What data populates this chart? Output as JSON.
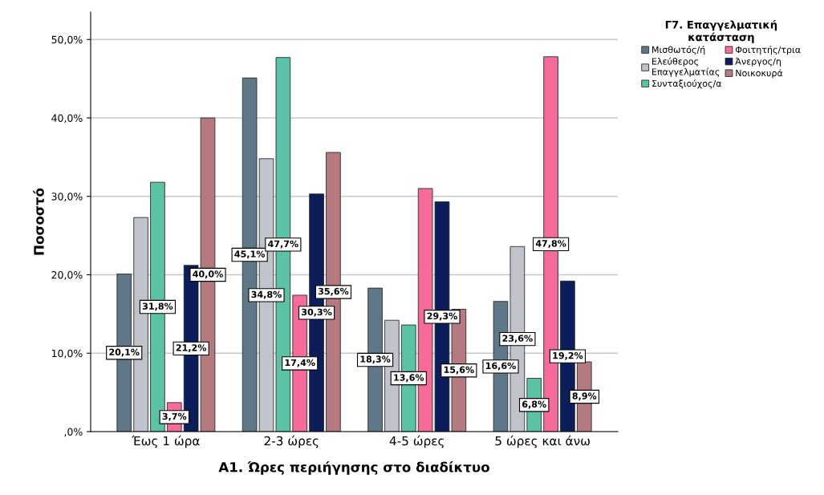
{
  "chart_data": {
    "type": "bar",
    "xlabel": "Α1. Ώρες περιήγησης στο διαδίκτυο",
    "ylabel": "Ποσοστό",
    "legend_title": "Γ7. Επαγγελματική\nκατάσταση",
    "categories": [
      "Έως 1 ώρα",
      "2-3 ώρες",
      "4-5 ώρες",
      "5 ώρες και άνω"
    ],
    "series": [
      {
        "name": "Μισθωτός/ή",
        "color": "#5f7888",
        "values": [
          20.1,
          45.1,
          18.3,
          16.6
        ],
        "value_labels": [
          "20,1%",
          "45,1%",
          "18,3%",
          "16,6%"
        ]
      },
      {
        "name": "Ελεύθερος\nΕπαγγελματίας",
        "color": "#c0c3cb",
        "values": [
          27.3,
          34.8,
          14.2,
          23.6
        ],
        "value_labels": [
          null,
          "34,8%",
          null,
          "23,6%"
        ]
      },
      {
        "name": "Συνταξιούχος/α",
        "color": "#5cc2a6",
        "values": [
          31.8,
          47.7,
          13.6,
          6.8
        ],
        "value_labels": [
          "31,8%",
          "47,7%",
          "13,6%",
          "6,8%"
        ]
      },
      {
        "name": "Φοιτητής/τρια",
        "color": "#f76b98",
        "values": [
          3.7,
          17.4,
          31.0,
          47.8
        ],
        "value_labels": [
          "3,7%",
          "17,4%",
          null,
          "47,8%"
        ]
      },
      {
        "name": "Άνεργος/η",
        "color": "#0b1d5a",
        "values": [
          21.2,
          30.3,
          29.3,
          19.2
        ],
        "value_labels": [
          "21,2%",
          "30,3%",
          "29,3%",
          "19,2%"
        ]
      },
      {
        "name": "Νοικοκυρά",
        "color": "#b47a80",
        "values": [
          40.0,
          35.6,
          15.6,
          8.9
        ],
        "value_labels": [
          "40,0%",
          "35,6%",
          "15,6%",
          "8,9%"
        ]
      }
    ],
    "ylim": [
      0,
      53.5
    ],
    "yticks": [
      {
        "value": 0,
        "label": ",0%"
      },
      {
        "value": 10,
        "label": "10,0%"
      },
      {
        "value": 20,
        "label": "20,0%"
      },
      {
        "value": 30,
        "label": "30,0%"
      },
      {
        "value": 40,
        "label": "40,0%"
      },
      {
        "value": 50,
        "label": "50,0%"
      }
    ],
    "grid": "y",
    "legend": "right"
  }
}
